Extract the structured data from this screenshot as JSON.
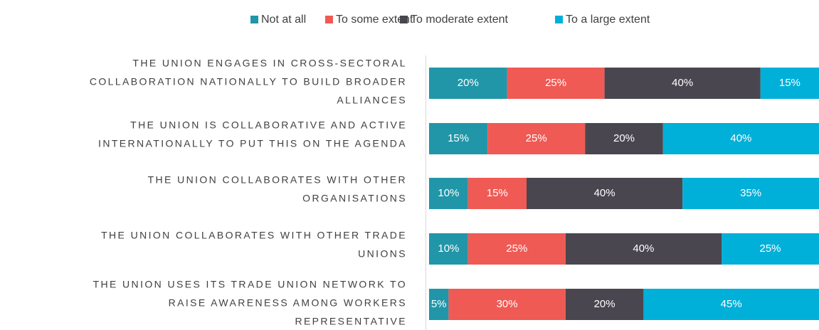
{
  "chart_data": {
    "type": "bar",
    "orientation": "horizontal",
    "stacked": true,
    "categories": [
      [
        "THE UNION ENGAGES IN CROSS-SECTORAL",
        "COLLABORATION NATIONALLY TO BUILD BROADER",
        "ALLIANCES"
      ],
      [
        "THE UNION IS COLLABORATIVE AND ACTIVE",
        "INTERNATIONALLY TO PUT THIS ON THE AGENDA"
      ],
      [
        "THE UNION COLLABORATES WITH OTHER",
        "ORGANISATIONS"
      ],
      [
        "THE UNION COLLABORATES WITH OTHER TRADE",
        "UNIONS"
      ],
      [
        "THE UNION USES ITS TRADE UNION NETWORK TO",
        "RAISE AWARENESS AMONG WORKERS",
        "REPRESENTATIVE"
      ]
    ],
    "series": [
      {
        "name": "Not at all",
        "color": "#2196a8",
        "values": [
          20,
          15,
          10,
          10,
          5
        ],
        "value_labels": [
          "20%",
          "15%",
          "10%",
          "10%",
          "5%"
        ]
      },
      {
        "name": "To some extent",
        "color": "#ef5a55",
        "values": [
          25,
          25,
          15,
          25,
          30
        ],
        "value_labels": [
          "25%",
          "25%",
          "15%",
          "25%",
          "30%"
        ]
      },
      {
        "name": "To moderate extent",
        "color": "#4a4650",
        "values": [
          40,
          20,
          40,
          40,
          20
        ],
        "value_labels": [
          "40%",
          "20%",
          "40%",
          "40%",
          "20%"
        ]
      },
      {
        "name": "To a large extent",
        "color": "#00b0d8",
        "values": [
          15,
          40,
          35,
          25,
          45
        ],
        "value_labels": [
          "15%",
          "40%",
          "35%",
          "25%",
          "45%"
        ]
      }
    ],
    "xlim": [
      0,
      100
    ],
    "legend": "top"
  }
}
